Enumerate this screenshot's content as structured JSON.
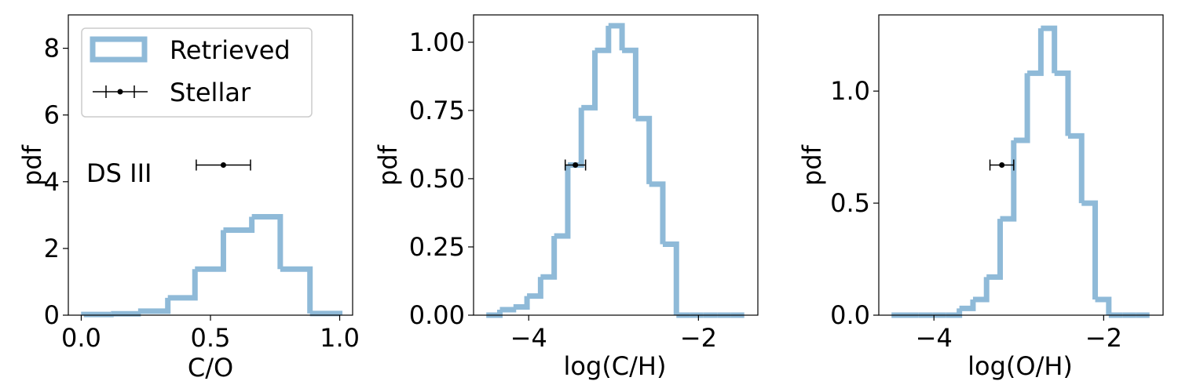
{
  "colors": {
    "hist": "#8fbad8",
    "marker": "#000000",
    "frame": "#000000",
    "background": "#ffffff"
  },
  "chart_data": [
    {
      "type": "histogram-step",
      "xlabel": "C/O",
      "ylabel": "pdf",
      "xlim": [
        -0.05,
        1.05
      ],
      "ylim": [
        0,
        9
      ],
      "xticks": [
        0.0,
        0.5,
        1.0
      ],
      "xtick_labels": [
        "0.0",
        "0.5",
        "1.0"
      ],
      "yticks": [
        0,
        2,
        4,
        6,
        8
      ],
      "ytick_labels": [
        "0",
        "2",
        "4",
        "6",
        "8"
      ],
      "bin_edges": [
        0.01,
        0.115,
        0.22,
        0.335,
        0.44,
        0.55,
        0.66,
        0.77,
        0.885,
        1.0
      ],
      "values": [
        0.02,
        0.04,
        0.12,
        0.52,
        1.38,
        2.55,
        2.95,
        1.38,
        0.05
      ],
      "legend": {
        "placement": "upper-left",
        "entries": [
          {
            "label": "Retrieved",
            "kind": "hist"
          },
          {
            "label": "Stellar",
            "kind": "errorbar"
          }
        ]
      },
      "annotation": "DS III",
      "stellar": {
        "x": 0.55,
        "y": 4.5,
        "xerr": 0.105
      }
    },
    {
      "type": "histogram-step",
      "xlabel": "log(C/H)",
      "ylabel": "pdf",
      "xlim": [
        -4.65,
        -1.3
      ],
      "ylim": [
        0,
        1.1
      ],
      "xticks": [
        -4,
        -2
      ],
      "xtick_labels": [
        "−4",
        "−2"
      ],
      "yticks": [
        0,
        0.25,
        0.5,
        0.75,
        1.0
      ],
      "ytick_labels": [
        "0.00",
        "0.25",
        "0.50",
        "0.75",
        "1.00"
      ],
      "bin_edges": [
        -4.5,
        -4.34,
        -4.18,
        -4.02,
        -3.86,
        -3.7,
        -3.54,
        -3.38,
        -3.22,
        -3.06,
        -2.9,
        -2.74,
        -2.58,
        -2.42,
        -2.26,
        -2.1,
        -1.94,
        -1.78,
        -1.62,
        -1.46
      ],
      "values": [
        0.0,
        0.02,
        0.03,
        0.07,
        0.14,
        0.29,
        0.55,
        0.76,
        0.97,
        1.06,
        0.97,
        0.72,
        0.48,
        0.26,
        0.0,
        0.0,
        0.0,
        0.0,
        0.0
      ],
      "stellar": {
        "x": -3.45,
        "y": 0.55,
        "xerr": 0.12
      }
    },
    {
      "type": "histogram-step",
      "xlabel": "log(O/H)",
      "ylabel": "pdf",
      "xlim": [
        -4.65,
        -1.3
      ],
      "ylim": [
        0,
        1.34
      ],
      "xticks": [
        -4,
        -2
      ],
      "xtick_labels": [
        "−4",
        "−2"
      ],
      "yticks": [
        0,
        0.5,
        1.0
      ],
      "ytick_labels": [
        "0.0",
        "0.5",
        "1.0"
      ],
      "bin_edges": [
        -4.5,
        -4.34,
        -4.18,
        -4.02,
        -3.86,
        -3.7,
        -3.54,
        -3.38,
        -3.22,
        -3.06,
        -2.9,
        -2.74,
        -2.58,
        -2.42,
        -2.26,
        -2.1,
        -1.94,
        -1.78,
        -1.62,
        -1.46
      ],
      "values": [
        0.0,
        0.0,
        0.0,
        0.0,
        0.0,
        0.03,
        0.07,
        0.17,
        0.43,
        0.78,
        1.08,
        1.28,
        1.08,
        0.8,
        0.5,
        0.07,
        0.0,
        0.0,
        0.0
      ],
      "stellar": {
        "x": -3.2,
        "y": 0.67,
        "xerr": 0.14
      }
    }
  ]
}
